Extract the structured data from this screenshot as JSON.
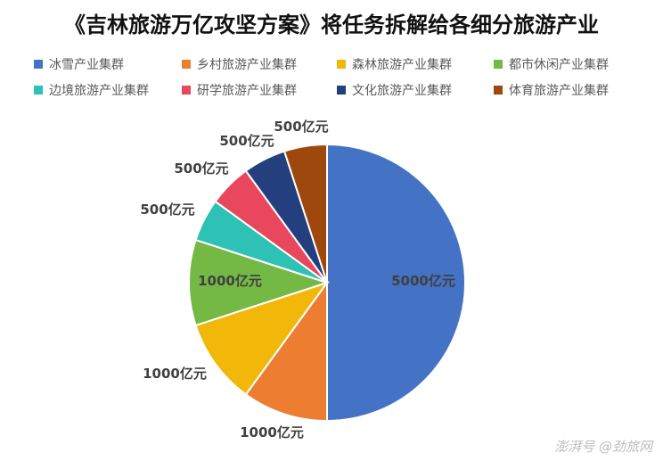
{
  "chart_data": {
    "type": "pie",
    "title": "《吉林旅游万亿攻坚方案》将任务拆解给各细分旅游产业",
    "unit": "亿元",
    "categories": [
      "冰雪产业集群",
      "乡村旅游产业集群",
      "森林旅游产业集群",
      "都市休闲产业集群",
      "边境旅游产业集群",
      "研学旅游产业集群",
      "文化旅游产业集群",
      "体育旅游产业集群"
    ],
    "values": [
      5000,
      1000,
      1000,
      1000,
      500,
      500,
      500,
      500
    ],
    "data_labels": [
      "5000亿元",
      "1000亿元",
      "1000亿元",
      "1000亿元",
      "500亿元",
      "500亿元",
      "500亿元",
      "500亿元"
    ],
    "colors": [
      "#4472C4",
      "#ED7D31",
      "#F1B80A",
      "#73B944",
      "#2EC1B5",
      "#E8475E",
      "#243F7E",
      "#9E480E"
    ],
    "legend_position": "top"
  },
  "watermark": "@劲旅网",
  "watermark_badge": "澎湃号"
}
